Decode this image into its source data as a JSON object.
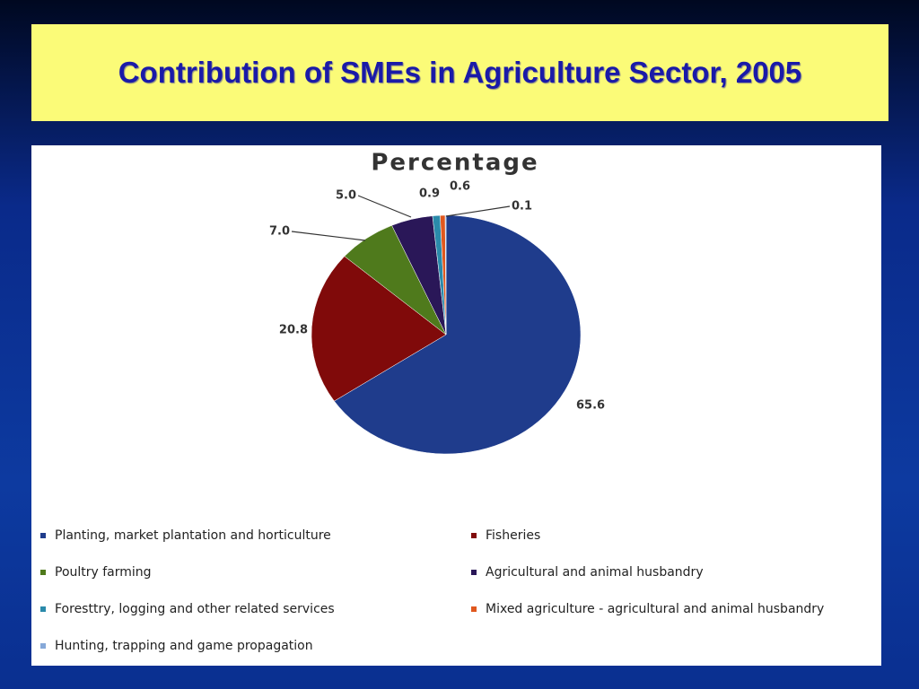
{
  "slide": {
    "title": "Contribution of SMEs in Agriculture Sector, 2005"
  },
  "chart_data": {
    "type": "pie",
    "title": "Percentage",
    "categories": [
      "Planting, market plantation and horticulture",
      "Fisheries",
      "Poultry farming",
      "Agricultural and animal husbandry",
      "Foresttry, logging and other related services",
      "Mixed agriculture - agricultural and animal husbandry",
      "Hunting, trapping and game propagation"
    ],
    "values": [
      65.6,
      20.8,
      7,
      5,
      0.9,
      0.6,
      0.1
    ],
    "value_labels": [
      "65.6",
      "20.8",
      "7.0",
      "5.0",
      "0.9",
      "0.6",
      "0.1"
    ],
    "colors": [
      "#1f3c8c",
      "#800a0a",
      "#4f7a1c",
      "#2a1758",
      "#2a8aaa",
      "#e0581e",
      "#86a8d8"
    ]
  }
}
